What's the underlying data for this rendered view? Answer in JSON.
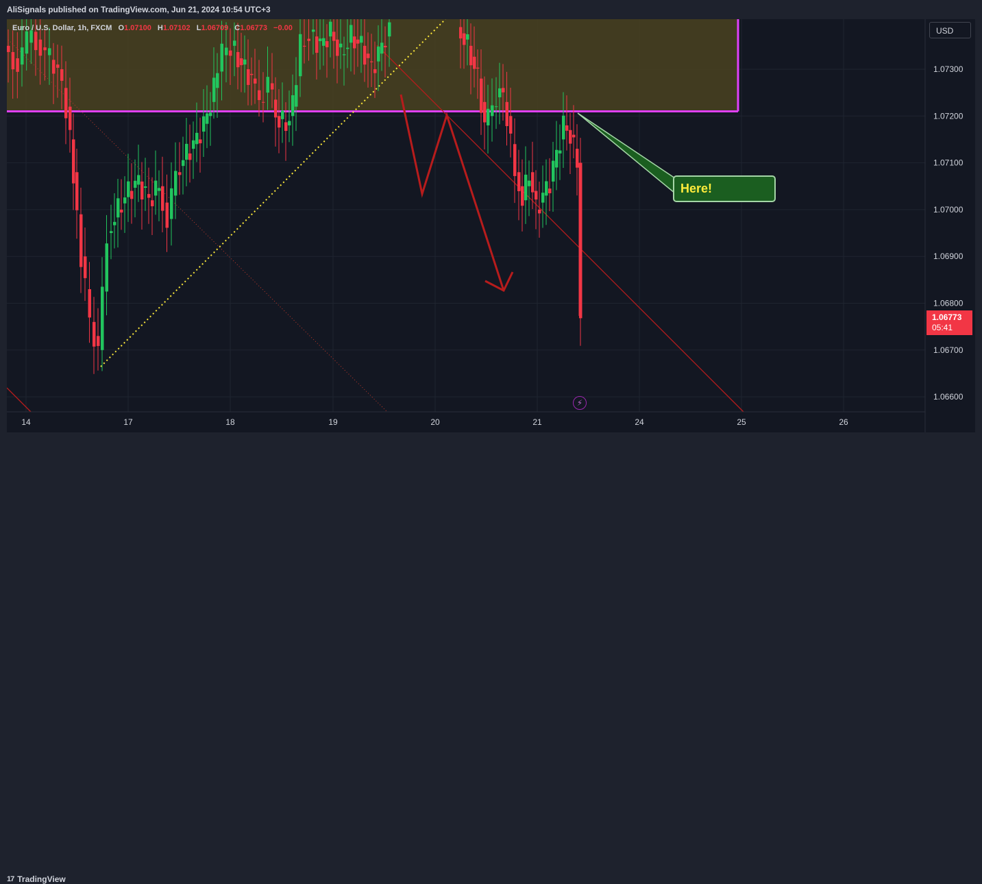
{
  "header": {
    "publisher_text": "AliSignals published on TradingView.com, Jun 21, 2024 10:54 UTC+3"
  },
  "legend": {
    "symbol": "Euro / U.S. Dollar, 1h, FXCM",
    "o_label": "O",
    "o_value": "1.07100",
    "h_label": "H",
    "h_value": "1.07102",
    "l_label": "L",
    "l_value": "1.06709",
    "c_label": "C",
    "c_value": "1.06773",
    "change": "−0.00"
  },
  "currency_button": "USD",
  "last_price": {
    "value": "1.06773",
    "countdown": "05:41"
  },
  "callout_text": "Here!",
  "footer": {
    "logo_text": "TradingView"
  },
  "colors": {
    "up": "#22c55e",
    "down": "#f23645",
    "zone_border": "#e040fb",
    "zone_fill": "#4a4220",
    "arrow": "#b71c1c",
    "support": "#ffeb3b",
    "resistance": "#b71c1c",
    "background": "#131722"
  },
  "icons": {
    "alert": "bolt-icon",
    "logo": "tradingview-logo-icon"
  },
  "chart_data": {
    "type": "candlestick",
    "interval": "1h",
    "ylim": [
      1.0657,
      1.0739
    ],
    "y_ticks": [
      "1.07300",
      "1.07200",
      "1.07100",
      "1.07000",
      "1.06900",
      "1.06800",
      "1.06700",
      "1.06600"
    ],
    "x_ticks": [
      "14",
      "17",
      "18",
      "19",
      "20",
      "21",
      "24",
      "25",
      "26"
    ],
    "grid": true,
    "zone": {
      "low": 1.0721,
      "high": 1.0739
    },
    "last_price": 1.06773,
    "candles_approx": [
      [
        1.0735,
        1.0736,
        1.0726,
        1.0728
      ],
      [
        1.0728,
        1.0731,
        1.0718,
        1.072
      ],
      [
        1.072,
        1.0722,
        1.0697,
        1.07
      ],
      [
        1.07,
        1.0705,
        1.068,
        1.0686
      ],
      [
        1.0686,
        1.0688,
        1.0668,
        1.067
      ],
      [
        1.067,
        1.0688,
        1.0669,
        1.0686
      ],
      [
        1.0686,
        1.07,
        1.0684,
        1.0698
      ],
      [
        1.0698,
        1.0707,
        1.0696,
        1.0703
      ],
      [
        1.0703,
        1.0707,
        1.0696,
        1.0701
      ],
      [
        1.0701,
        1.0705,
        1.0694,
        1.0699
      ],
      [
        1.0699,
        1.071,
        1.0697,
        1.0708
      ],
      [
        1.0708,
        1.0718,
        1.0706,
        1.0716
      ],
      [
        1.0716,
        1.0728,
        1.0714,
        1.0726
      ],
      [
        1.0726,
        1.0734,
        1.0722,
        1.0732
      ],
      [
        1.0732,
        1.0737,
        1.0719,
        1.0722
      ],
      [
        1.0722,
        1.0725,
        1.0712,
        1.0717
      ],
      [
        1.0717,
        1.0735,
        1.0715,
        1.0733
      ],
      [
        1.0733,
        1.0739,
        1.0728,
        1.0736
      ],
      [
        1.0736,
        1.0739,
        1.0731,
        1.0734
      ],
      [
        1.0734,
        1.0739,
        1.0725,
        1.073
      ],
      [
        1.073,
        1.0739,
        1.0728,
        1.0737
      ],
      [
        1.0737,
        1.0739,
        1.0723,
        1.0726
      ],
      [
        1.0726,
        1.0729,
        1.0718,
        1.072
      ],
      [
        1.072,
        1.0732,
        1.0714,
        1.0722
      ],
      [
        1.0722,
        1.0723,
        1.07,
        1.0704
      ],
      [
        1.0704,
        1.0712,
        1.0699,
        1.0708
      ],
      [
        1.0708,
        1.072,
        1.0707,
        1.0718
      ],
      [
        1.0718,
        1.0721,
        1.0709,
        1.071
      ],
      [
        1.071,
        1.0711,
        1.0671,
        1.0677
      ]
    ]
  }
}
